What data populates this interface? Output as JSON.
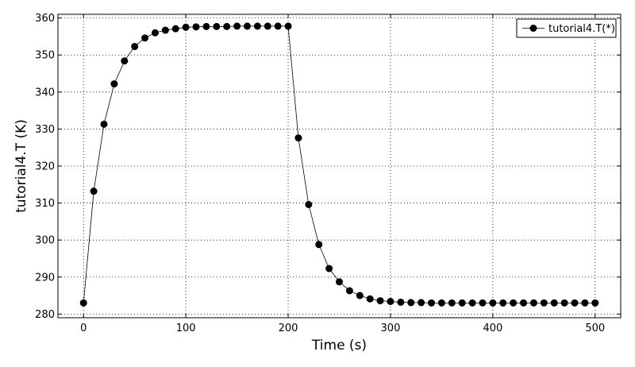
{
  "chart_data": {
    "type": "line",
    "title": "",
    "xlabel": "Time (s)",
    "ylabel": "tutorial4.T (K)",
    "xlim": [
      -25,
      525
    ],
    "ylim": [
      279,
      361
    ],
    "x_ticks": [
      0,
      100,
      200,
      300,
      400,
      500
    ],
    "y_ticks": [
      280,
      290,
      300,
      310,
      320,
      330,
      340,
      350,
      360
    ],
    "grid": true,
    "legend_position": "top-right",
    "marker": "circle",
    "line_color": "#000000",
    "series": [
      {
        "name": "tutorial4.T(*)",
        "x": [
          0,
          10,
          20,
          30,
          40,
          50,
          60,
          70,
          80,
          90,
          100,
          110,
          120,
          130,
          140,
          150,
          160,
          170,
          180,
          190,
          200,
          210,
          220,
          230,
          240,
          250,
          260,
          270,
          280,
          290,
          300,
          310,
          320,
          330,
          340,
          350,
          360,
          370,
          380,
          390,
          400,
          410,
          420,
          430,
          440,
          450,
          460,
          470,
          480,
          490,
          500
        ],
        "values": [
          283.0,
          313.2,
          331.3,
          342.2,
          348.4,
          352.3,
          354.6,
          356.0,
          356.7,
          357.1,
          357.5,
          357.6,
          357.7,
          357.7,
          357.7,
          357.8,
          357.8,
          357.8,
          357.8,
          357.8,
          357.8,
          327.6,
          309.6,
          298.8,
          292.3,
          288.7,
          286.3,
          285.0,
          284.1,
          283.6,
          283.4,
          283.2,
          283.1,
          283.1,
          283.0,
          283.0,
          283.0,
          283.0,
          283.0,
          283.0,
          283.0,
          283.0,
          283.0,
          283.0,
          283.0,
          283.0,
          283.0,
          283.0,
          283.0,
          283.0,
          283.0
        ]
      }
    ]
  }
}
